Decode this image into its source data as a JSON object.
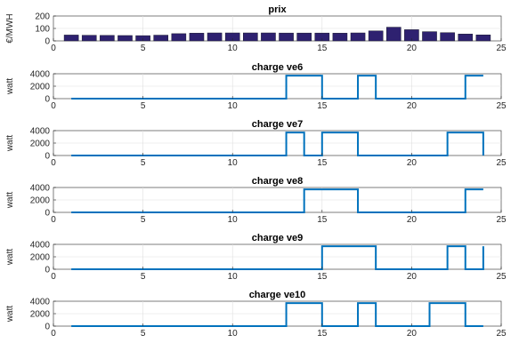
{
  "colors": {
    "bar_fill": "#2e2170",
    "bar_edge": "#1a1a2e",
    "line": "#0072bd",
    "axis": "#262626",
    "grid": "#dfdfdf"
  },
  "chart_data": [
    {
      "type": "bar",
      "title": "prix",
      "ylabel": "€/MWH",
      "xlim": [
        0,
        25
      ],
      "ylim": [
        0,
        200
      ],
      "xticks": [
        0,
        5,
        10,
        15,
        20,
        25
      ],
      "yticks": [
        0,
        100,
        200
      ],
      "grid": true,
      "x": [
        1,
        2,
        3,
        4,
        5,
        6,
        7,
        8,
        9,
        10,
        11,
        12,
        13,
        14,
        15,
        16,
        17,
        18,
        19,
        20,
        21,
        22,
        23,
        24
      ],
      "values": [
        47,
        45,
        44,
        43,
        42,
        46,
        58,
        62,
        64,
        64,
        64,
        64,
        63,
        63,
        63,
        62,
        64,
        80,
        110,
        90,
        74,
        66,
        55,
        48
      ]
    },
    {
      "type": "line",
      "title": "charge ve6",
      "ylabel": "watt",
      "xlim": [
        0,
        25
      ],
      "ylim": [
        0,
        4000
      ],
      "xticks": [
        0,
        5,
        10,
        15,
        20,
        25
      ],
      "yticks": [
        0,
        2000,
        4000
      ],
      "grid": true,
      "step": true,
      "x": [
        1,
        2,
        3,
        4,
        5,
        6,
        7,
        8,
        9,
        10,
        11,
        12,
        13,
        14,
        15,
        16,
        17,
        18,
        19,
        20,
        21,
        22,
        23,
        24
      ],
      "values": [
        0,
        0,
        0,
        0,
        0,
        0,
        0,
        0,
        0,
        0,
        0,
        0,
        3700,
        3700,
        0,
        0,
        3700,
        0,
        0,
        0,
        0,
        0,
        3700,
        3700
      ]
    },
    {
      "type": "line",
      "title": "charge ve7",
      "ylabel": "watt",
      "xlim": [
        0,
        25
      ],
      "ylim": [
        0,
        4000
      ],
      "xticks": [
        0,
        5,
        10,
        15,
        20,
        25
      ],
      "yticks": [
        0,
        2000,
        4000
      ],
      "grid": true,
      "step": true,
      "x": [
        1,
        2,
        3,
        4,
        5,
        6,
        7,
        8,
        9,
        10,
        11,
        12,
        13,
        14,
        15,
        16,
        17,
        18,
        19,
        20,
        21,
        22,
        23,
        24
      ],
      "values": [
        0,
        0,
        0,
        0,
        0,
        0,
        0,
        0,
        0,
        0,
        0,
        0,
        3700,
        0,
        3700,
        3700,
        0,
        0,
        0,
        0,
        0,
        3700,
        3700,
        0
      ]
    },
    {
      "type": "line",
      "title": "charge ve8",
      "ylabel": "watt",
      "xlim": [
        0,
        25
      ],
      "ylim": [
        0,
        4000
      ],
      "xticks": [
        0,
        5,
        10,
        15,
        20,
        25
      ],
      "yticks": [
        0,
        2000,
        4000
      ],
      "grid": true,
      "step": true,
      "x": [
        1,
        2,
        3,
        4,
        5,
        6,
        7,
        8,
        9,
        10,
        11,
        12,
        13,
        14,
        15,
        16,
        17,
        18,
        19,
        20,
        21,
        22,
        23,
        24
      ],
      "values": [
        0,
        0,
        0,
        0,
        0,
        0,
        0,
        0,
        0,
        0,
        0,
        0,
        0,
        3700,
        3700,
        3700,
        0,
        0,
        0,
        0,
        0,
        0,
        3700,
        3700
      ]
    },
    {
      "type": "line",
      "title": "charge ve9",
      "ylabel": "watt",
      "xlim": [
        0,
        25
      ],
      "ylim": [
        0,
        4000
      ],
      "xticks": [
        0,
        5,
        10,
        15,
        20,
        25
      ],
      "yticks": [
        0,
        2000,
        4000
      ],
      "grid": true,
      "step": true,
      "x": [
        1,
        2,
        3,
        4,
        5,
        6,
        7,
        8,
        9,
        10,
        11,
        12,
        13,
        14,
        15,
        16,
        17,
        18,
        19,
        20,
        21,
        22,
        23,
        24
      ],
      "values": [
        0,
        0,
        0,
        0,
        0,
        0,
        0,
        0,
        0,
        0,
        0,
        0,
        0,
        0,
        3700,
        3700,
        3700,
        0,
        0,
        0,
        0,
        3700,
        0,
        3700
      ]
    },
    {
      "type": "line",
      "title": "charge ve10",
      "ylabel": "watt",
      "xlim": [
        0,
        25
      ],
      "ylim": [
        0,
        4000
      ],
      "xticks": [
        0,
        5,
        10,
        15,
        20,
        25
      ],
      "yticks": [
        0,
        2000,
        4000
      ],
      "grid": true,
      "step": true,
      "x": [
        1,
        2,
        3,
        4,
        5,
        6,
        7,
        8,
        9,
        10,
        11,
        12,
        13,
        14,
        15,
        16,
        17,
        18,
        19,
        20,
        21,
        22,
        23,
        24
      ],
      "values": [
        0,
        0,
        0,
        0,
        0,
        0,
        0,
        0,
        0,
        0,
        0,
        0,
        3700,
        3700,
        0,
        0,
        3700,
        0,
        0,
        0,
        3700,
        3700,
        0,
        0
      ]
    }
  ]
}
